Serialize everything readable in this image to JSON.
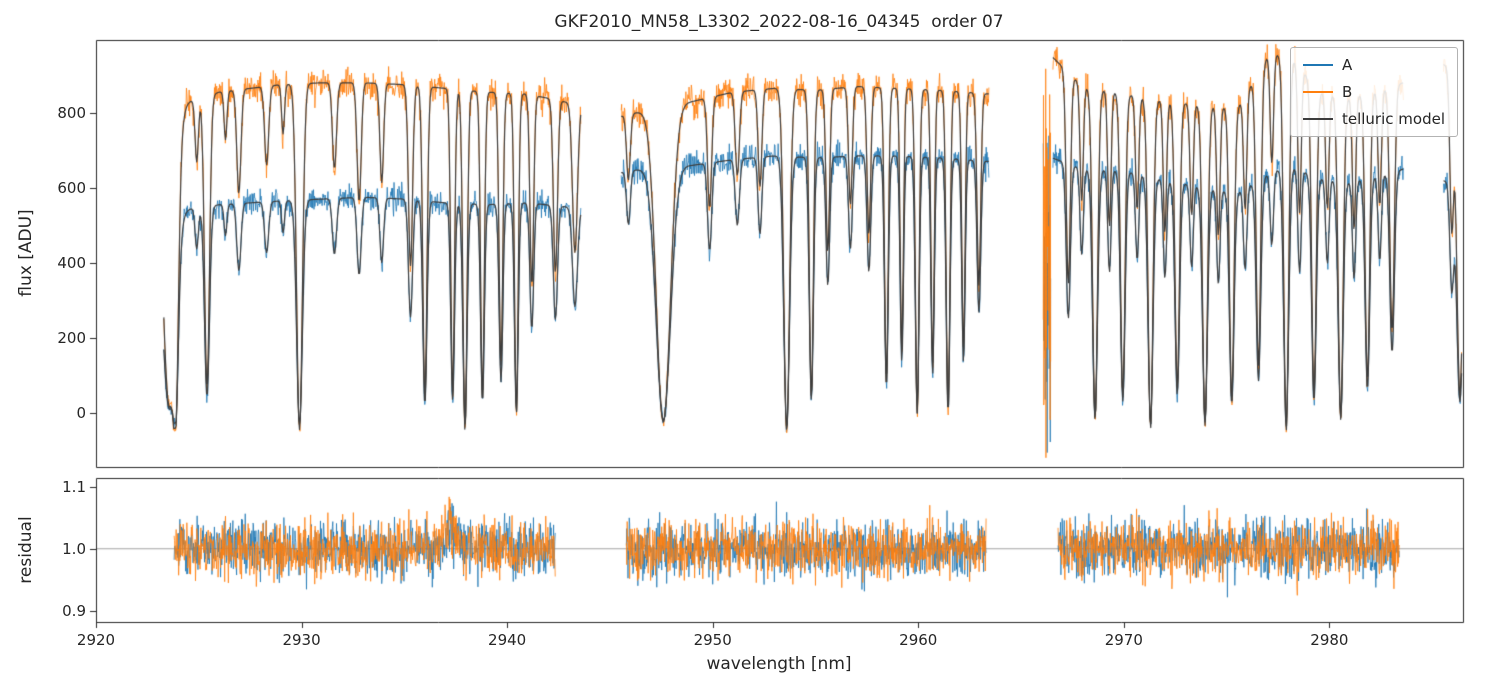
{
  "figure": {
    "title": "GKF2010_MN58_L3302_2022-08-16_04345  order 07",
    "xlabel": "wavelength [nm]",
    "ylabel_top": "flux [ADU]",
    "ylabel_bottom": "residual"
  },
  "legend": {
    "entries": [
      {
        "label": "A",
        "color": "#1f77b4"
      },
      {
        "label": "B",
        "color": "#ff7f0e"
      },
      {
        "label": "telluric model",
        "color": "#3d3d3d"
      }
    ]
  },
  "chart_data": {
    "type": "line",
    "title": "GKF2010_MN58_L3302_2022-08-16_04345  order 07",
    "xlabel": "wavelength [nm]",
    "xlim": [
      2920,
      2986.5
    ],
    "xticks": [
      2920,
      2930,
      2940,
      2950,
      2960,
      2970,
      2980
    ],
    "xtick_labels": [
      "2920",
      "2930",
      "2940",
      "2950",
      "2960",
      "2970",
      "2980"
    ],
    "panels": [
      {
        "name": "flux",
        "ylabel": "flux [ADU]",
        "ylim": [
          -144,
          994
        ],
        "yticks": [
          0,
          200,
          400,
          600,
          800
        ],
        "ytick_labels": [
          "0",
          "200",
          "400",
          "600",
          "800"
        ],
        "series": [
          "A",
          "B",
          "telluric model"
        ]
      },
      {
        "name": "residual",
        "ylabel": "residual",
        "ylim": [
          0.882,
          1.114
        ],
        "yticks": [
          0.9,
          1.0,
          1.1
        ],
        "ytick_labels": [
          "0.9",
          "1.0",
          "1.1"
        ],
        "refline": 1.0,
        "series": [
          "A",
          "B"
        ]
      }
    ],
    "segments": [
      [
        2923.3,
        2943.6
      ],
      [
        2945.55,
        2963.45
      ],
      [
        2966.55,
        2983.6
      ],
      [
        2985.55,
        2986.45
      ]
    ],
    "residual_segments": [
      [
        2923.8,
        2942.35
      ],
      [
        2945.8,
        2963.3
      ],
      [
        2966.8,
        2983.4
      ]
    ],
    "spike_segments": [
      [
        2966.08,
        2966.45
      ]
    ],
    "continuum_A": [
      [
        2920,
        520
      ],
      [
        2923.3,
        535
      ],
      [
        2926,
        555
      ],
      [
        2929,
        565
      ],
      [
        2931,
        570
      ],
      [
        2933,
        575
      ],
      [
        2935,
        570
      ],
      [
        2937,
        560
      ],
      [
        2939,
        555
      ],
      [
        2941,
        560
      ],
      [
        2943.6,
        545
      ],
      [
        2945.5,
        640
      ],
      [
        2947,
        655
      ],
      [
        2949,
        660
      ],
      [
        2951,
        675
      ],
      [
        2953,
        685
      ],
      [
        2955,
        680
      ],
      [
        2957,
        685
      ],
      [
        2959,
        685
      ],
      [
        2961,
        680
      ],
      [
        2963.5,
        670
      ],
      [
        2966.5,
        680
      ],
      [
        2968,
        650
      ],
      [
        2970,
        645
      ],
      [
        2972,
        620
      ],
      [
        2974,
        600
      ],
      [
        2975.5,
        585
      ],
      [
        2977,
        635
      ],
      [
        2978,
        660
      ],
      [
        2979.5,
        625
      ],
      [
        2981,
        615
      ],
      [
        2983,
        640
      ],
      [
        2983.6,
        650
      ],
      [
        2985.5,
        620
      ],
      [
        2986.5,
        600
      ]
    ],
    "continuum_B": [
      [
        2920,
        800
      ],
      [
        2923.3,
        810
      ],
      [
        2926,
        855
      ],
      [
        2929,
        875
      ],
      [
        2931,
        880
      ],
      [
        2933,
        880
      ],
      [
        2935,
        875
      ],
      [
        2937,
        865
      ],
      [
        2939,
        855
      ],
      [
        2941,
        850
      ],
      [
        2943.6,
        820
      ],
      [
        2945.5,
        790
      ],
      [
        2947,
        810
      ],
      [
        2949,
        830
      ],
      [
        2951,
        855
      ],
      [
        2953,
        865
      ],
      [
        2955,
        860
      ],
      [
        2957,
        870
      ],
      [
        2959,
        865
      ],
      [
        2961,
        860
      ],
      [
        2963.5,
        850
      ],
      [
        2966.5,
        950
      ],
      [
        2968,
        870
      ],
      [
        2970,
        850
      ],
      [
        2972,
        830
      ],
      [
        2974,
        820
      ],
      [
        2975.5,
        810
      ],
      [
        2977,
        950
      ],
      [
        2978,
        960
      ],
      [
        2979.5,
        855
      ],
      [
        2981,
        840
      ],
      [
        2983,
        870
      ],
      [
        2983.6,
        880
      ],
      [
        2985.5,
        930
      ],
      [
        2986.5,
        900
      ]
    ],
    "telluric_lines": [
      [
        2923.55,
        0.3,
        0.97
      ],
      [
        2923.9,
        0.12,
        0.55
      ],
      [
        2924.9,
        0.08,
        0.2
      ],
      [
        2925.4,
        0.12,
        0.92
      ],
      [
        2926.3,
        0.07,
        0.15
      ],
      [
        2926.95,
        0.1,
        0.32
      ],
      [
        2928.3,
        0.1,
        0.24
      ],
      [
        2929.1,
        0.07,
        0.15
      ],
      [
        2929.9,
        0.14,
        1.06
      ],
      [
        2931.6,
        0.1,
        0.26
      ],
      [
        2932.8,
        0.1,
        0.36
      ],
      [
        2933.9,
        0.09,
        0.3
      ],
      [
        2935.3,
        0.1,
        0.55
      ],
      [
        2936.0,
        0.1,
        0.96
      ],
      [
        2937.35,
        0.09,
        0.94
      ],
      [
        2937.95,
        0.1,
        1.06
      ],
      [
        2938.8,
        0.09,
        0.95
      ],
      [
        2939.7,
        0.09,
        0.85
      ],
      [
        2940.45,
        0.09,
        1.0
      ],
      [
        2941.2,
        0.09,
        0.6
      ],
      [
        2942.35,
        0.1,
        0.55
      ],
      [
        2943.3,
        0.12,
        0.48
      ],
      [
        2945.9,
        0.09,
        0.22
      ],
      [
        2947.6,
        0.35,
        1.03
      ],
      [
        2949.85,
        0.1,
        0.35
      ],
      [
        2951.2,
        0.1,
        0.26
      ],
      [
        2952.3,
        0.09,
        0.3
      ],
      [
        2953.6,
        0.14,
        1.06
      ],
      [
        2954.8,
        0.1,
        0.95
      ],
      [
        2955.6,
        0.09,
        0.5
      ],
      [
        2956.7,
        0.09,
        0.36
      ],
      [
        2957.6,
        0.09,
        0.45
      ],
      [
        2958.45,
        0.09,
        0.9
      ],
      [
        2959.2,
        0.08,
        0.8
      ],
      [
        2959.95,
        0.09,
        1.0
      ],
      [
        2960.7,
        0.08,
        0.85
      ],
      [
        2961.45,
        0.09,
        1.0
      ],
      [
        2962.2,
        0.08,
        0.8
      ],
      [
        2962.95,
        0.09,
        0.6
      ],
      [
        2967.3,
        0.1,
        0.62
      ],
      [
        2968.6,
        0.12,
        1.02
      ],
      [
        2969.95,
        0.11,
        0.95
      ],
      [
        2971.3,
        0.12,
        1.05
      ],
      [
        2972.6,
        0.11,
        0.92
      ],
      [
        2973.95,
        0.12,
        1.04
      ],
      [
        2975.25,
        0.11,
        0.96
      ],
      [
        2976.55,
        0.11,
        0.86
      ],
      [
        2977.9,
        0.12,
        1.05
      ],
      [
        2979.25,
        0.11,
        0.95
      ],
      [
        2980.55,
        0.12,
        1.02
      ],
      [
        2981.85,
        0.11,
        0.9
      ],
      [
        2983.05,
        0.11,
        0.75
      ],
      [
        2967.95,
        0.08,
        0.35
      ],
      [
        2969.3,
        0.08,
        0.42
      ],
      [
        2970.65,
        0.08,
        0.36
      ],
      [
        2972.0,
        0.08,
        0.42
      ],
      [
        2973.3,
        0.08,
        0.36
      ],
      [
        2974.6,
        0.08,
        0.42
      ],
      [
        2975.9,
        0.08,
        0.36
      ],
      [
        2977.2,
        0.08,
        0.3
      ],
      [
        2978.55,
        0.08,
        0.42
      ],
      [
        2979.9,
        0.08,
        0.36
      ],
      [
        2981.2,
        0.08,
        0.42
      ],
      [
        2982.45,
        0.08,
        0.36
      ],
      [
        2985.95,
        0.09,
        0.45
      ],
      [
        2986.35,
        0.15,
        0.95
      ]
    ],
    "noise": {
      "flux_sigma_base": 13,
      "flux_sigma_frac": 0.02,
      "residual_sigma": 0.032
    },
    "residual_bump": {
      "center": 2937.2,
      "sigma": 0.25,
      "amp": 0.045
    },
    "colors": {
      "A": "#1f77b4",
      "B": "#ff7f0e",
      "model": "#3d3d3d",
      "refline": "#8c8c8c",
      "axis": "#262626"
    }
  }
}
